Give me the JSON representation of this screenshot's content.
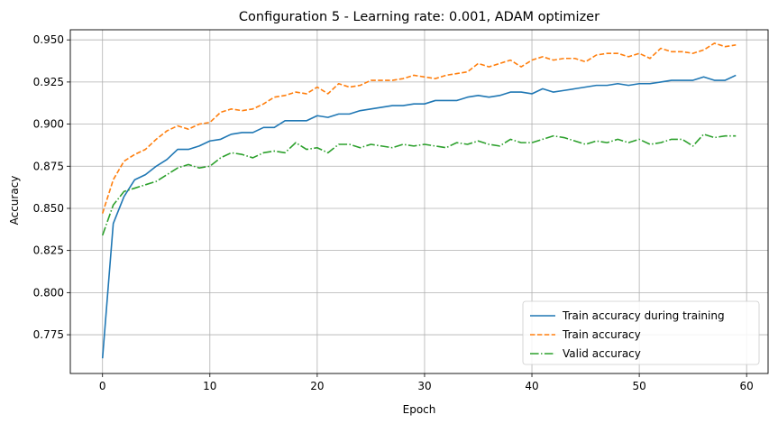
{
  "chart_data": {
    "type": "line",
    "title": "Configuration 5 - Learning rate: 0.001, ADAM optimizer",
    "xlabel": "Epoch",
    "ylabel": "Accuracy",
    "xlim": [
      -3,
      62
    ],
    "ylim": [
      0.752,
      0.956
    ],
    "x_ticks": [
      0,
      10,
      20,
      30,
      40,
      50,
      60
    ],
    "y_ticks": [
      0.775,
      0.8,
      0.825,
      0.85,
      0.875,
      0.9,
      0.925,
      0.95
    ],
    "x_tick_labels": [
      "0",
      "10",
      "20",
      "30",
      "40",
      "50",
      "60"
    ],
    "y_tick_labels": [
      "0.775",
      "0.800",
      "0.825",
      "0.850",
      "0.875",
      "0.900",
      "0.925",
      "0.950"
    ],
    "grid": true,
    "legend_position": "lower-right",
    "x": [
      0,
      1,
      2,
      3,
      4,
      5,
      6,
      7,
      8,
      9,
      10,
      11,
      12,
      13,
      14,
      15,
      16,
      17,
      18,
      19,
      20,
      21,
      22,
      23,
      24,
      25,
      26,
      27,
      28,
      29,
      30,
      31,
      32,
      33,
      34,
      35,
      36,
      37,
      38,
      39,
      40,
      41,
      42,
      43,
      44,
      45,
      46,
      47,
      48,
      49,
      50,
      51,
      52,
      53,
      54,
      55,
      56,
      57,
      58,
      59
    ],
    "series": [
      {
        "name": "Train accuracy during training",
        "color": "#1f77b4",
        "dash": "solid",
        "values": [
          0.761,
          0.841,
          0.857,
          0.867,
          0.87,
          0.875,
          0.879,
          0.885,
          0.885,
          0.887,
          0.89,
          0.891,
          0.894,
          0.895,
          0.895,
          0.898,
          0.898,
          0.902,
          0.902,
          0.902,
          0.905,
          0.904,
          0.906,
          0.906,
          0.908,
          0.909,
          0.91,
          0.911,
          0.911,
          0.912,
          0.912,
          0.914,
          0.914,
          0.914,
          0.916,
          0.917,
          0.916,
          0.917,
          0.919,
          0.919,
          0.918,
          0.921,
          0.919,
          0.92,
          0.921,
          0.922,
          0.923,
          0.923,
          0.924,
          0.923,
          0.924,
          0.924,
          0.925,
          0.926,
          0.926,
          0.926,
          0.928,
          0.926,
          0.926,
          0.929
        ]
      },
      {
        "name": "Train accuracy",
        "color": "#ff7f0e",
        "dash": "dashed",
        "values": [
          0.847,
          0.867,
          0.878,
          0.882,
          0.885,
          0.891,
          0.896,
          0.899,
          0.897,
          0.9,
          0.901,
          0.907,
          0.909,
          0.908,
          0.909,
          0.912,
          0.916,
          0.917,
          0.919,
          0.918,
          0.922,
          0.918,
          0.924,
          0.922,
          0.923,
          0.926,
          0.926,
          0.926,
          0.927,
          0.929,
          0.928,
          0.927,
          0.929,
          0.93,
          0.931,
          0.936,
          0.934,
          0.936,
          0.938,
          0.934,
          0.938,
          0.94,
          0.938,
          0.939,
          0.939,
          0.937,
          0.941,
          0.942,
          0.942,
          0.94,
          0.942,
          0.939,
          0.945,
          0.943,
          0.943,
          0.942,
          0.944,
          0.948,
          0.946,
          0.947
        ]
      },
      {
        "name": "Valid accuracy",
        "color": "#2ca02c",
        "dash": "dashdot",
        "values": [
          0.834,
          0.852,
          0.86,
          0.862,
          0.864,
          0.866,
          0.87,
          0.874,
          0.876,
          0.874,
          0.875,
          0.88,
          0.883,
          0.882,
          0.88,
          0.883,
          0.884,
          0.883,
          0.889,
          0.885,
          0.886,
          0.883,
          0.888,
          0.888,
          0.886,
          0.888,
          0.887,
          0.886,
          0.888,
          0.887,
          0.888,
          0.887,
          0.886,
          0.889,
          0.888,
          0.89,
          0.888,
          0.887,
          0.891,
          0.889,
          0.889,
          0.891,
          0.893,
          0.892,
          0.89,
          0.888,
          0.89,
          0.889,
          0.891,
          0.889,
          0.891,
          0.888,
          0.889,
          0.891,
          0.891,
          0.887,
          0.894,
          0.892,
          0.893,
          0.893
        ]
      }
    ]
  }
}
